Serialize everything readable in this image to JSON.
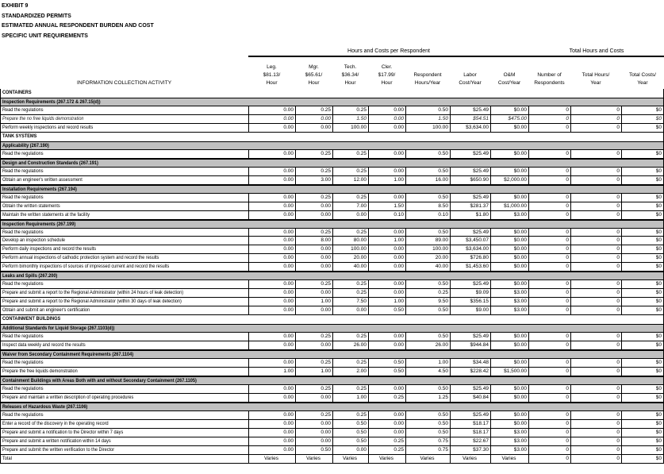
{
  "titles": [
    "EXHIBIT 9",
    "STANDARDIZED PERMITS",
    "ESTIMATED ANNUAL RESPONDENT BURDEN AND COST",
    "SPECIFIC UNIT REQUIREMENTS"
  ],
  "groups": {
    "per_respondent": "Hours and Costs per Respondent",
    "totals": "Total Hours and Costs"
  },
  "columns": {
    "activity": "INFORMATION COLLECTION ACTIVITY",
    "leg": [
      "Leg.",
      "$81.13/",
      "Hour"
    ],
    "mgr": [
      "Mgr.",
      "$65.61/",
      "Hour"
    ],
    "tech": [
      "Tech.",
      "$36.34/",
      "Hour"
    ],
    "cler": [
      "Cler.",
      "$17.99/",
      "Hour"
    ],
    "resp": [
      "Respondent",
      "Hours/Year"
    ],
    "labor": [
      "Labor",
      "Cost/Year"
    ],
    "om": [
      "O&M",
      "Cost/Year"
    ],
    "num": [
      "Number of",
      "Respondents"
    ],
    "thours": [
      "Total Hours/",
      "Year"
    ],
    "tcost": [
      "Total Costs/",
      "Year"
    ]
  },
  "rows": [
    {
      "t": "sec",
      "label": "CONTAINERS"
    },
    {
      "t": "sub",
      "label": "Inspection Requirements (267.172 & 267.15(d))"
    },
    {
      "t": "item",
      "label": "Read the regulations",
      "v": [
        "0.00",
        "0.25",
        "0.25",
        "0.00",
        "0.50",
        "$25.49",
        "$0.00",
        "0",
        "0",
        "$0"
      ]
    },
    {
      "t": "it",
      "label": "Prepare the no free liquids demonstration",
      "v": [
        "0.00",
        "0.00",
        "1.50",
        "0.00",
        "1.50",
        "$54.51",
        "$475.00",
        "0",
        "0",
        "$0"
      ]
    },
    {
      "t": "item",
      "label": "Perform weekly inspections and record results",
      "v": [
        "0.00",
        "0.00",
        "100.00",
        "0.00",
        "100.00",
        "$3,634.00",
        "$0.00",
        "0",
        "0",
        "$0"
      ]
    },
    {
      "t": "sec",
      "label": "TANK SYSTEMS"
    },
    {
      "t": "sub",
      "label": "Applicability (267.190)"
    },
    {
      "t": "item",
      "label": "Read the regulations",
      "v": [
        "0.00",
        "0.25",
        "0.25",
        "0.00",
        "0.50",
        "$25.49",
        "$0.00",
        "0",
        "0",
        "$0"
      ]
    },
    {
      "t": "sub",
      "label": "Design and Construction Standards (267.191)"
    },
    {
      "t": "item",
      "label": "Read the regulations",
      "v": [
        "0.00",
        "0.25",
        "0.25",
        "0.00",
        "0.50",
        "$25.49",
        "$0.00",
        "0",
        "0",
        "$0"
      ]
    },
    {
      "t": "item",
      "label": "Obtain an engineer's written assessment",
      "v": [
        "0.00",
        "3.00",
        "12.00",
        "1.00",
        "16.00",
        "$650.90",
        "$2,000.00",
        "0",
        "0",
        "$0"
      ]
    },
    {
      "t": "sub",
      "label": "Installation Requirements (267.194)"
    },
    {
      "t": "item",
      "label": "Read the regulations",
      "v": [
        "0.00",
        "0.25",
        "0.25",
        "0.00",
        "0.50",
        "$25.49",
        "$0.00",
        "0",
        "0",
        "$0"
      ]
    },
    {
      "t": "item",
      "label": "Obtain the written statements",
      "v": [
        "0.00",
        "0.00",
        "7.00",
        "1.50",
        "8.50",
        "$281.37",
        "$1,000.00",
        "0",
        "0",
        "$0"
      ]
    },
    {
      "t": "item",
      "label": "Maintain the written statements at the facility",
      "v": [
        "0.00",
        "0.00",
        "0.00",
        "0.10",
        "0.10",
        "$1.80",
        "$3.00",
        "0",
        "0",
        "$0"
      ]
    },
    {
      "t": "sub",
      "label": "Inspection Requirements (267.199)"
    },
    {
      "t": "item",
      "label": "Read the regulations",
      "v": [
        "0.00",
        "0.25",
        "0.25",
        "0.00",
        "0.50",
        "$25.49",
        "$0.00",
        "0",
        "0",
        "$0"
      ]
    },
    {
      "t": "item",
      "label": "Develop an inspection schedule",
      "v": [
        "0.00",
        "8.00",
        "80.00",
        "1.00",
        "89.00",
        "$3,450.07",
        "$0.00",
        "0",
        "0",
        "$0"
      ]
    },
    {
      "t": "item",
      "label": "Perform daily inspections and record the results",
      "v": [
        "0.00",
        "0.00",
        "100.00",
        "0.00",
        "100.00",
        "$3,634.00",
        "$0.00",
        "0",
        "0",
        "$0"
      ]
    },
    {
      "t": "item",
      "label": "Perform annual inspections of cathodic protection system and record the results",
      "v": [
        "0.00",
        "0.00",
        "20.00",
        "0.00",
        "20.00",
        "$726.80",
        "$0.00",
        "0",
        "0",
        "$0"
      ]
    },
    {
      "t": "item",
      "label": "Perform bimonthly inspections of sources of impressed current and record the results",
      "v": [
        "0.00",
        "0.00",
        "40.00",
        "0.00",
        "40.00",
        "$1,453.60",
        "$0.00",
        "0",
        "0",
        "$0"
      ]
    },
    {
      "t": "sub",
      "label": "Leaks and Spills (267.200)"
    },
    {
      "t": "item",
      "label": "Read the regulations",
      "v": [
        "0.00",
        "0.25",
        "0.25",
        "0.00",
        "0.50",
        "$25.49",
        "$0.00",
        "0",
        "0",
        "$0"
      ]
    },
    {
      "t": "item",
      "label": "Prepare and submit a report to the Regional Administrator (within 24 hours of leak detection)",
      "v": [
        "0.00",
        "0.00",
        "0.25",
        "0.00",
        "0.25",
        "$9.09",
        "$3.00",
        "0",
        "0",
        "$0"
      ]
    },
    {
      "t": "item",
      "label": "Prepare and submit a report to the Regional Administrator (within 30 days of leak detection)",
      "v": [
        "0.00",
        "1.00",
        "7.50",
        "1.00",
        "9.50",
        "$356.15",
        "$3.00",
        "0",
        "0",
        "$0"
      ]
    },
    {
      "t": "item",
      "label": "Obtain and submit an engineer's certification",
      "v": [
        "0.00",
        "0.00",
        "0.00",
        "0.50",
        "0.50",
        "$9.00",
        "$3.00",
        "0",
        "0",
        "$0"
      ]
    },
    {
      "t": "sec",
      "label": "CONTAINMENT BUILDINGS"
    },
    {
      "t": "sub",
      "label": "Additional Standards for Liquid Storage (267.1103(d))"
    },
    {
      "t": "item",
      "label": "Read the regulations",
      "v": [
        "0.00",
        "0.25",
        "0.25",
        "0.00",
        "0.50",
        "$25.49",
        "$0.00",
        "0",
        "0",
        "$0"
      ]
    },
    {
      "t": "item",
      "label": "Inspect data weekly and record the results",
      "v": [
        "0.00",
        "0.00",
        "26.00",
        "0.00",
        "26.00",
        "$944.84",
        "$0.00",
        "0",
        "0",
        "$0"
      ]
    },
    {
      "t": "sub",
      "label": "Waiver from Secondary Containment Requirements (267.1104)"
    },
    {
      "t": "item",
      "label": "Read the regulations",
      "v": [
        "0.00",
        "0.25",
        "0.25",
        "0.50",
        "1.00",
        "$34.48",
        "$0.00",
        "0",
        "0",
        "$0"
      ]
    },
    {
      "t": "item",
      "label": "Prepare the free liquids demonstration",
      "v": [
        "1.00",
        "1.00",
        "2.00",
        "0.50",
        "4.50",
        "$228.42",
        "$1,500.00",
        "0",
        "0",
        "$0"
      ]
    },
    {
      "t": "sub",
      "label": "Containment Buildings with Areas Both with and without Secondary Containment (267.1105)"
    },
    {
      "t": "item",
      "label": "Read the regulations",
      "v": [
        "0.00",
        "0.25",
        "0.25",
        "0.00",
        "0.50",
        "$25.49",
        "$0.00",
        "0",
        "0",
        "$0"
      ]
    },
    {
      "t": "item",
      "label": "Prepare and maintain a written description of operating procedures",
      "v": [
        "0.00",
        "0.00",
        "1.00",
        "0.25",
        "1.25",
        "$40.84",
        "$0.00",
        "0",
        "0",
        "$0"
      ]
    },
    {
      "t": "sub",
      "label": "Releases of Hazardous Waste (267.1106)"
    },
    {
      "t": "item",
      "label": "Read the regulations",
      "v": [
        "0.00",
        "0.25",
        "0.25",
        "0.00",
        "0.50",
        "$25.49",
        "$0.00",
        "0",
        "0",
        "$0"
      ]
    },
    {
      "t": "item",
      "label": "Enter a record of the discovery in the operating record",
      "v": [
        "0.00",
        "0.00",
        "0.50",
        "0.00",
        "0.50",
        "$18.17",
        "$0.00",
        "0",
        "0",
        "$0"
      ]
    },
    {
      "t": "item",
      "label": "Prepare and submit a notification to the Director within 7 days",
      "v": [
        "0.00",
        "0.00",
        "0.50",
        "0.00",
        "0.50",
        "$18.17",
        "$3.00",
        "0",
        "0",
        "$0"
      ]
    },
    {
      "t": "item",
      "label": "Prepare and submit a written notification within 14 days",
      "v": [
        "0.00",
        "0.00",
        "0.50",
        "0.25",
        "0.75",
        "$22.67",
        "$3.00",
        "0",
        "0",
        "$0"
      ]
    },
    {
      "t": "item",
      "label": "Prepare and submit the written verification to the Director",
      "v": [
        "0.00",
        "0.50",
        "0.00",
        "0.25",
        "0.75",
        "$37.30",
        "$3.00",
        "0",
        "0",
        "$0"
      ]
    },
    {
      "t": "tot",
      "label": "Total",
      "v": [
        "Varies",
        "Varies",
        "Varies",
        "Varies",
        "Varies",
        "Varies",
        "Varies",
        "0",
        "0",
        "$0"
      ]
    }
  ]
}
